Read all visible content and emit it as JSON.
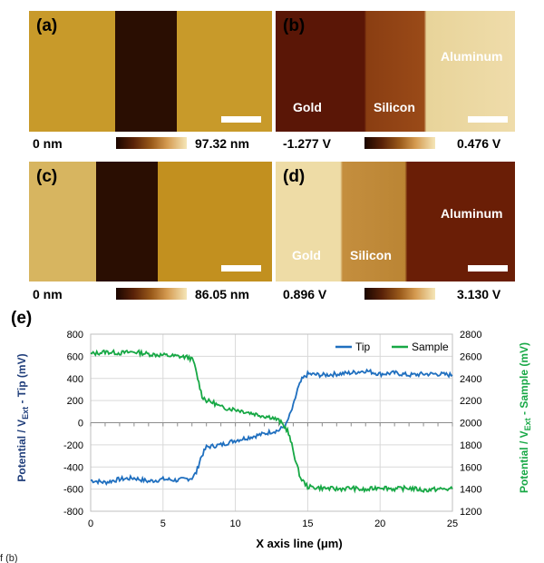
{
  "panels": [
    {
      "label": "(a)",
      "cb_min": "0 nm",
      "cb_max": "97.32 nm",
      "materials": []
    },
    {
      "label": "(b)",
      "cb_min": "-1.277 V",
      "cb_max": "0.476 V",
      "materials": [
        "Gold",
        "Silicon",
        "Aluminum"
      ]
    },
    {
      "label": "(c)",
      "cb_min": "0 nm",
      "cb_max": "86.05 nm",
      "materials": []
    },
    {
      "label": "(d)",
      "cb_min": "0.896 V",
      "cb_max": "3.130 V",
      "materials": [
        "Gold",
        "Silicon",
        "Aluminum"
      ]
    }
  ],
  "colors": {
    "tip": "#1f6fbf",
    "sample": "#17a845",
    "left_axis": "#1f3d7a",
    "right_axis": "#17a845"
  },
  "chart_data": {
    "type": "line",
    "label": "(e)",
    "xlabel": "X axis line (μm)",
    "ylabel_left_parts": [
      "Potential / V",
      "Ext",
      " - Tip (mV)"
    ],
    "ylabel_right_parts": [
      "Potential / V",
      "Ext",
      " - Sample (mV)"
    ],
    "xlim": [
      0,
      25
    ],
    "ylim_left": [
      -800,
      800
    ],
    "ylim_right": [
      1200,
      2800
    ],
    "xticks": [
      "0",
      "5",
      "10",
      "15",
      "20",
      "25"
    ],
    "yticks_left": [
      "800",
      "600",
      "400",
      "200",
      "0",
      "-200",
      "-400",
      "-600",
      "-800"
    ],
    "yticks_right": [
      "2800",
      "2600",
      "2400",
      "2200",
      "2000",
      "1800",
      "1600",
      "1400",
      "1200"
    ],
    "legend_position": "top-right",
    "series": [
      {
        "name": "Tip",
        "axis": "left",
        "x": [
          0,
          1,
          2,
          3,
          4,
          5,
          6,
          7,
          7.3,
          7.6,
          8,
          8.5,
          9,
          10,
          11,
          12,
          12.5,
          13,
          13.5,
          14,
          14.3,
          14.6,
          15,
          16,
          17,
          18,
          19,
          20,
          21,
          22,
          23,
          24,
          25
        ],
        "values": [
          -520,
          -540,
          -510,
          -500,
          -530,
          -510,
          -520,
          -500,
          -450,
          -320,
          -220,
          -210,
          -200,
          -160,
          -130,
          -100,
          -80,
          -70,
          -20,
          150,
          300,
          390,
          440,
          430,
          440,
          450,
          470,
          440,
          450,
          430,
          440,
          440,
          430
        ]
      },
      {
        "name": "Sample",
        "axis": "right",
        "x": [
          0,
          1,
          2,
          3,
          4,
          5,
          6,
          6.8,
          7.1,
          7.4,
          7.7,
          8,
          8.5,
          9,
          10,
          11,
          12,
          12.5,
          13,
          13.3,
          13.6,
          13.9,
          14.2,
          14.5,
          15,
          16,
          17,
          18,
          19,
          20,
          21,
          22,
          23,
          24,
          25
        ],
        "values": [
          2620,
          2640,
          2630,
          2640,
          2620,
          2610,
          2600,
          2590,
          2560,
          2400,
          2240,
          2200,
          2180,
          2140,
          2120,
          2090,
          2060,
          2050,
          2020,
          1980,
          1930,
          1800,
          1640,
          1500,
          1420,
          1410,
          1400,
          1410,
          1390,
          1420,
          1400,
          1410,
          1390,
          1400,
          1400
        ]
      }
    ]
  },
  "footer_text": "f                                                (b)"
}
